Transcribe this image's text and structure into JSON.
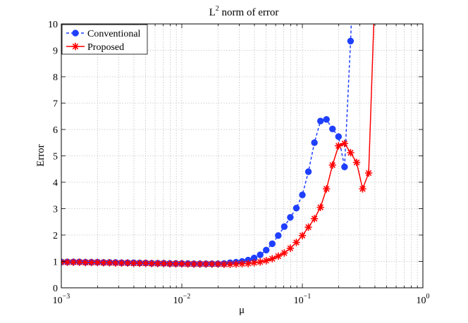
{
  "chart_data": {
    "type": "line",
    "title": "L",
    "title_superscript": "2",
    "title_rest": " norm of error",
    "xlabel": "μ",
    "ylabel": "Error",
    "xscale": "log",
    "xlim": [
      0.001,
      1
    ],
    "ylim": [
      0,
      10
    ],
    "grid": "dotted, major and minor",
    "legend_position": "top-left",
    "x_ticks": [
      {
        "value": 0.001,
        "base": "10",
        "exp": "−3"
      },
      {
        "value": 0.01,
        "base": "10",
        "exp": "−2"
      },
      {
        "value": 0.1,
        "base": "10",
        "exp": "−1"
      },
      {
        "value": 1,
        "base": "10",
        "exp": "0"
      }
    ],
    "y_ticks": [
      "0",
      "1",
      "2",
      "3",
      "4",
      "5",
      "6",
      "7",
      "8",
      "9",
      "10"
    ],
    "series": [
      {
        "name": "Conventional",
        "color": "#1f3fff",
        "line_style": "dashed",
        "marker": "circle",
        "points": [
          [
            0.001,
            0.98
          ],
          [
            0.001122,
            0.98
          ],
          [
            0.001259,
            0.98
          ],
          [
            0.001413,
            0.98
          ],
          [
            0.001585,
            0.97
          ],
          [
            0.001778,
            0.97
          ],
          [
            0.001995,
            0.97
          ],
          [
            0.002239,
            0.96
          ],
          [
            0.002512,
            0.96
          ],
          [
            0.002818,
            0.96
          ],
          [
            0.003162,
            0.95
          ],
          [
            0.003548,
            0.95
          ],
          [
            0.003981,
            0.95
          ],
          [
            0.004467,
            0.94
          ],
          [
            0.005012,
            0.94
          ],
          [
            0.005623,
            0.93
          ],
          [
            0.00631,
            0.93
          ],
          [
            0.007079,
            0.93
          ],
          [
            0.007943,
            0.92
          ],
          [
            0.008913,
            0.92
          ],
          [
            0.01,
            0.92
          ],
          [
            0.01122,
            0.92
          ],
          [
            0.01259,
            0.91
          ],
          [
            0.01413,
            0.91
          ],
          [
            0.01585,
            0.91
          ],
          [
            0.01778,
            0.91
          ],
          [
            0.01995,
            0.91
          ],
          [
            0.02239,
            0.92
          ],
          [
            0.02512,
            0.95
          ],
          [
            0.02818,
            0.97
          ],
          [
            0.03162,
            1.0
          ],
          [
            0.03548,
            1.05
          ],
          [
            0.03981,
            1.13
          ],
          [
            0.04467,
            1.25
          ],
          [
            0.05012,
            1.43
          ],
          [
            0.05623,
            1.67
          ],
          [
            0.0631,
            1.98
          ],
          [
            0.07079,
            2.32
          ],
          [
            0.07943,
            2.67
          ],
          [
            0.08913,
            3.02
          ],
          [
            0.1,
            3.52
          ],
          [
            0.1122,
            4.4
          ],
          [
            0.1259,
            5.5
          ],
          [
            0.1413,
            6.32
          ],
          [
            0.1585,
            6.38
          ],
          [
            0.1778,
            6.02
          ],
          [
            0.1995,
            5.73
          ],
          [
            0.2239,
            4.58
          ],
          [
            0.2512,
            9.35
          ],
          [
            0.2818,
            15.0
          ]
        ]
      },
      {
        "name": "Proposed",
        "color": "#ff0000",
        "line_style": "solid",
        "marker": "star",
        "points": [
          [
            0.001,
            0.97
          ],
          [
            0.001122,
            0.97
          ],
          [
            0.001259,
            0.97
          ],
          [
            0.001413,
            0.97
          ],
          [
            0.001585,
            0.96
          ],
          [
            0.001778,
            0.96
          ],
          [
            0.001995,
            0.96
          ],
          [
            0.002239,
            0.95
          ],
          [
            0.002512,
            0.95
          ],
          [
            0.002818,
            0.94
          ],
          [
            0.003162,
            0.94
          ],
          [
            0.003548,
            0.94
          ],
          [
            0.003981,
            0.93
          ],
          [
            0.004467,
            0.93
          ],
          [
            0.005012,
            0.93
          ],
          [
            0.005623,
            0.92
          ],
          [
            0.00631,
            0.92
          ],
          [
            0.007079,
            0.92
          ],
          [
            0.007943,
            0.91
          ],
          [
            0.008913,
            0.91
          ],
          [
            0.01,
            0.91
          ],
          [
            0.01122,
            0.9
          ],
          [
            0.01259,
            0.9
          ],
          [
            0.01413,
            0.9
          ],
          [
            0.01585,
            0.9
          ],
          [
            0.01778,
            0.9
          ],
          [
            0.01995,
            0.9
          ],
          [
            0.02239,
            0.89
          ],
          [
            0.02512,
            0.89
          ],
          [
            0.02818,
            0.9
          ],
          [
            0.03162,
            0.91
          ],
          [
            0.03548,
            0.92
          ],
          [
            0.03981,
            0.95
          ],
          [
            0.04467,
            0.98
          ],
          [
            0.05012,
            1.03
          ],
          [
            0.05623,
            1.1
          ],
          [
            0.0631,
            1.2
          ],
          [
            0.07079,
            1.32
          ],
          [
            0.07943,
            1.5
          ],
          [
            0.08913,
            1.72
          ],
          [
            0.1,
            1.98
          ],
          [
            0.1122,
            2.3
          ],
          [
            0.1259,
            2.62
          ],
          [
            0.1413,
            3.05
          ],
          [
            0.1585,
            3.75
          ],
          [
            0.1778,
            4.65
          ],
          [
            0.1995,
            5.38
          ],
          [
            0.2239,
            5.47
          ],
          [
            0.2512,
            5.12
          ],
          [
            0.2818,
            4.75
          ],
          [
            0.3162,
            3.75
          ],
          [
            0.3548,
            4.35
          ],
          [
            0.3981,
            11.0
          ]
        ]
      }
    ]
  }
}
